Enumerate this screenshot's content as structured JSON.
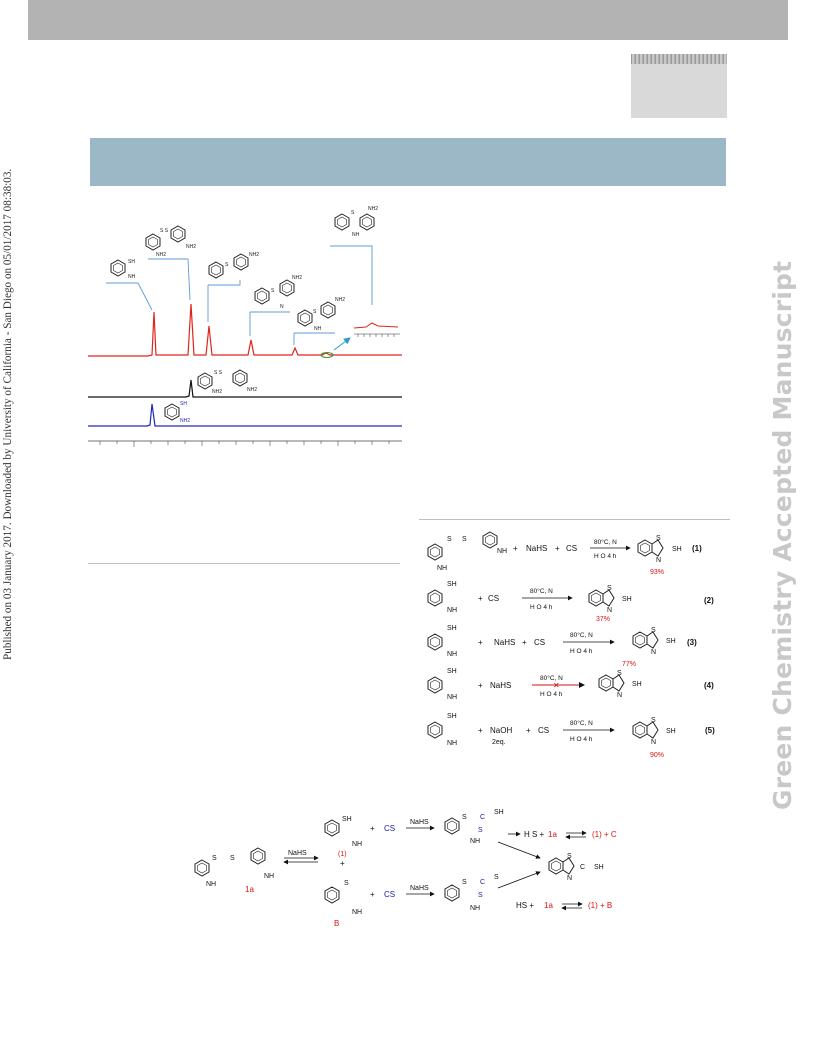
{
  "side_citation": "Published on 03 January 2017. Downloaded by University of California - San Diego on 05/01/2017 08:38:03.",
  "watermark": "Green Chemistry Accepted Manuscript",
  "hplc_figure": {
    "labels": {
      "sh": "SH",
      "nh2": "NH2",
      "s": "S",
      "ss": "S S",
      "n": "N",
      "nh": "NH"
    }
  },
  "table_figure": {
    "common": {
      "nahs": "NaHS",
      "cs2": "CS",
      "conditions_top": "80°C, N",
      "conditions_bottom": "H O 4 h",
      "sh": "SH",
      "s": "S",
      "n": "N",
      "nh2": "NH",
      "plus": "+"
    },
    "rows": [
      {
        "eq": "(1)",
        "yield": "93%"
      },
      {
        "eq": "(2)",
        "yield": "37%"
      },
      {
        "eq": "(3)",
        "yield": "77%"
      },
      {
        "eq": "(4)",
        "yield": ""
      },
      {
        "eq": "(5)",
        "yield": "90%"
      }
    ],
    "naoh": "NaOH",
    "naoh_eq": "2eq."
  },
  "mechanism": {
    "nahs": "NaHS",
    "cs2": "CS",
    "cmpd_1": "(1)",
    "cmpd_1a": "1a",
    "cmpd_b": "B",
    "h2s": "H S + ",
    "hs": "HS + ",
    "product_1c": "(1) + C",
    "product_1b": "(1) + B",
    "sh": "SH",
    "s": "S",
    "n": "N",
    "c": "C",
    "nh2": "NH",
    "plus": "+"
  }
}
